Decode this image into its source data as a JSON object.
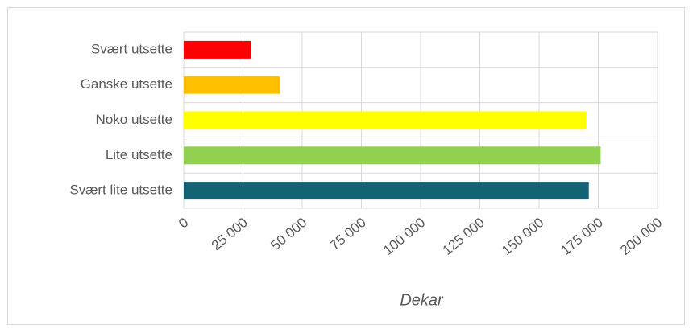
{
  "chart_data": {
    "type": "barh",
    "categories": [
      "Svært utsette",
      "Ganske utsette",
      "Noko utsette",
      "Lite utsette",
      "Svært lite utsette"
    ],
    "values": [
      28500,
      40500,
      170000,
      176000,
      171000
    ],
    "colors": [
      "#ff0000",
      "#ffc000",
      "#ffff00",
      "#92d050",
      "#136374"
    ],
    "xlabel": "Dekar",
    "xlim": [
      0,
      200000
    ],
    "xticks": [
      0,
      {
        "value": 25000,
        "label": "25 000"
      },
      {
        "value": 50000,
        "label": "50 000"
      },
      {
        "value": 75000,
        "label": "75 000"
      },
      {
        "value": 100000,
        "label": "100 000"
      },
      {
        "value": 125000,
        "label": "125 000"
      },
      {
        "value": 150000,
        "label": "150 000"
      },
      {
        "value": 175000,
        "label": "175 000"
      },
      {
        "value": 200000,
        "label": "200 000"
      }
    ],
    "grid": true
  }
}
